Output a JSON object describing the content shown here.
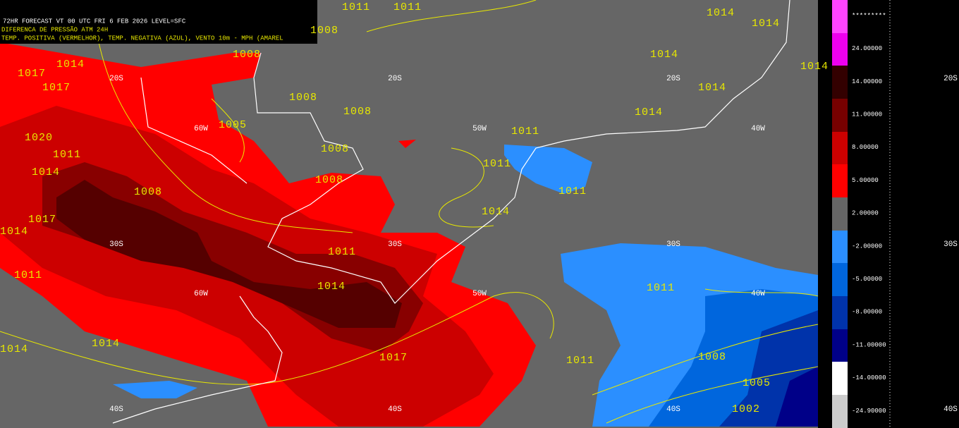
{
  "header": {
    "lines": [
      "72HR FORECAST    VT 00 UTC FRI  6 FEB 2026    LEVEL=SFC",
      "DIFERENCA DE PRESSÃO ATM 24H",
      "TEMP. POSITIVA (VERMELHOR), TEMP. NEGATIVA (AZUL), VENTO 10m - MPH (AMAREL"
    ]
  },
  "grid_labels": [
    "20S",
    "20S",
    "20S",
    "60W",
    "50W",
    "40W",
    "30S",
    "30S",
    "30S",
    "60W",
    "50W",
    "40W",
    "40S",
    "40S",
    "40S",
    "20S",
    "30S",
    "40S"
  ],
  "isobar_labels": [
    "1011",
    "1011",
    "1014",
    "1014",
    "1014",
    "1008",
    "1008",
    "1008",
    "1005",
    "1008",
    "1008",
    "1008",
    "1014",
    "1014",
    "1014",
    "1011",
    "1011",
    "1011",
    "1014",
    "1011",
    "1014",
    "1011",
    "1014",
    "1017",
    "1011",
    "1008",
    "1005",
    "1002",
    "1011",
    "1014",
    "1014",
    "1017",
    "1017",
    "1014",
    "1011",
    "1014",
    "1020",
    "1017",
    "1008"
  ],
  "colorbar": {
    "labels": [
      "*********",
      "24.00000",
      "14.00000",
      "11.00000",
      "8.00000",
      "5.00000",
      "2.00000",
      "-2.00000",
      "-5.00000",
      "-8.00000",
      "-11.00000",
      "-14.00000",
      "-24.90000"
    ]
  }
}
